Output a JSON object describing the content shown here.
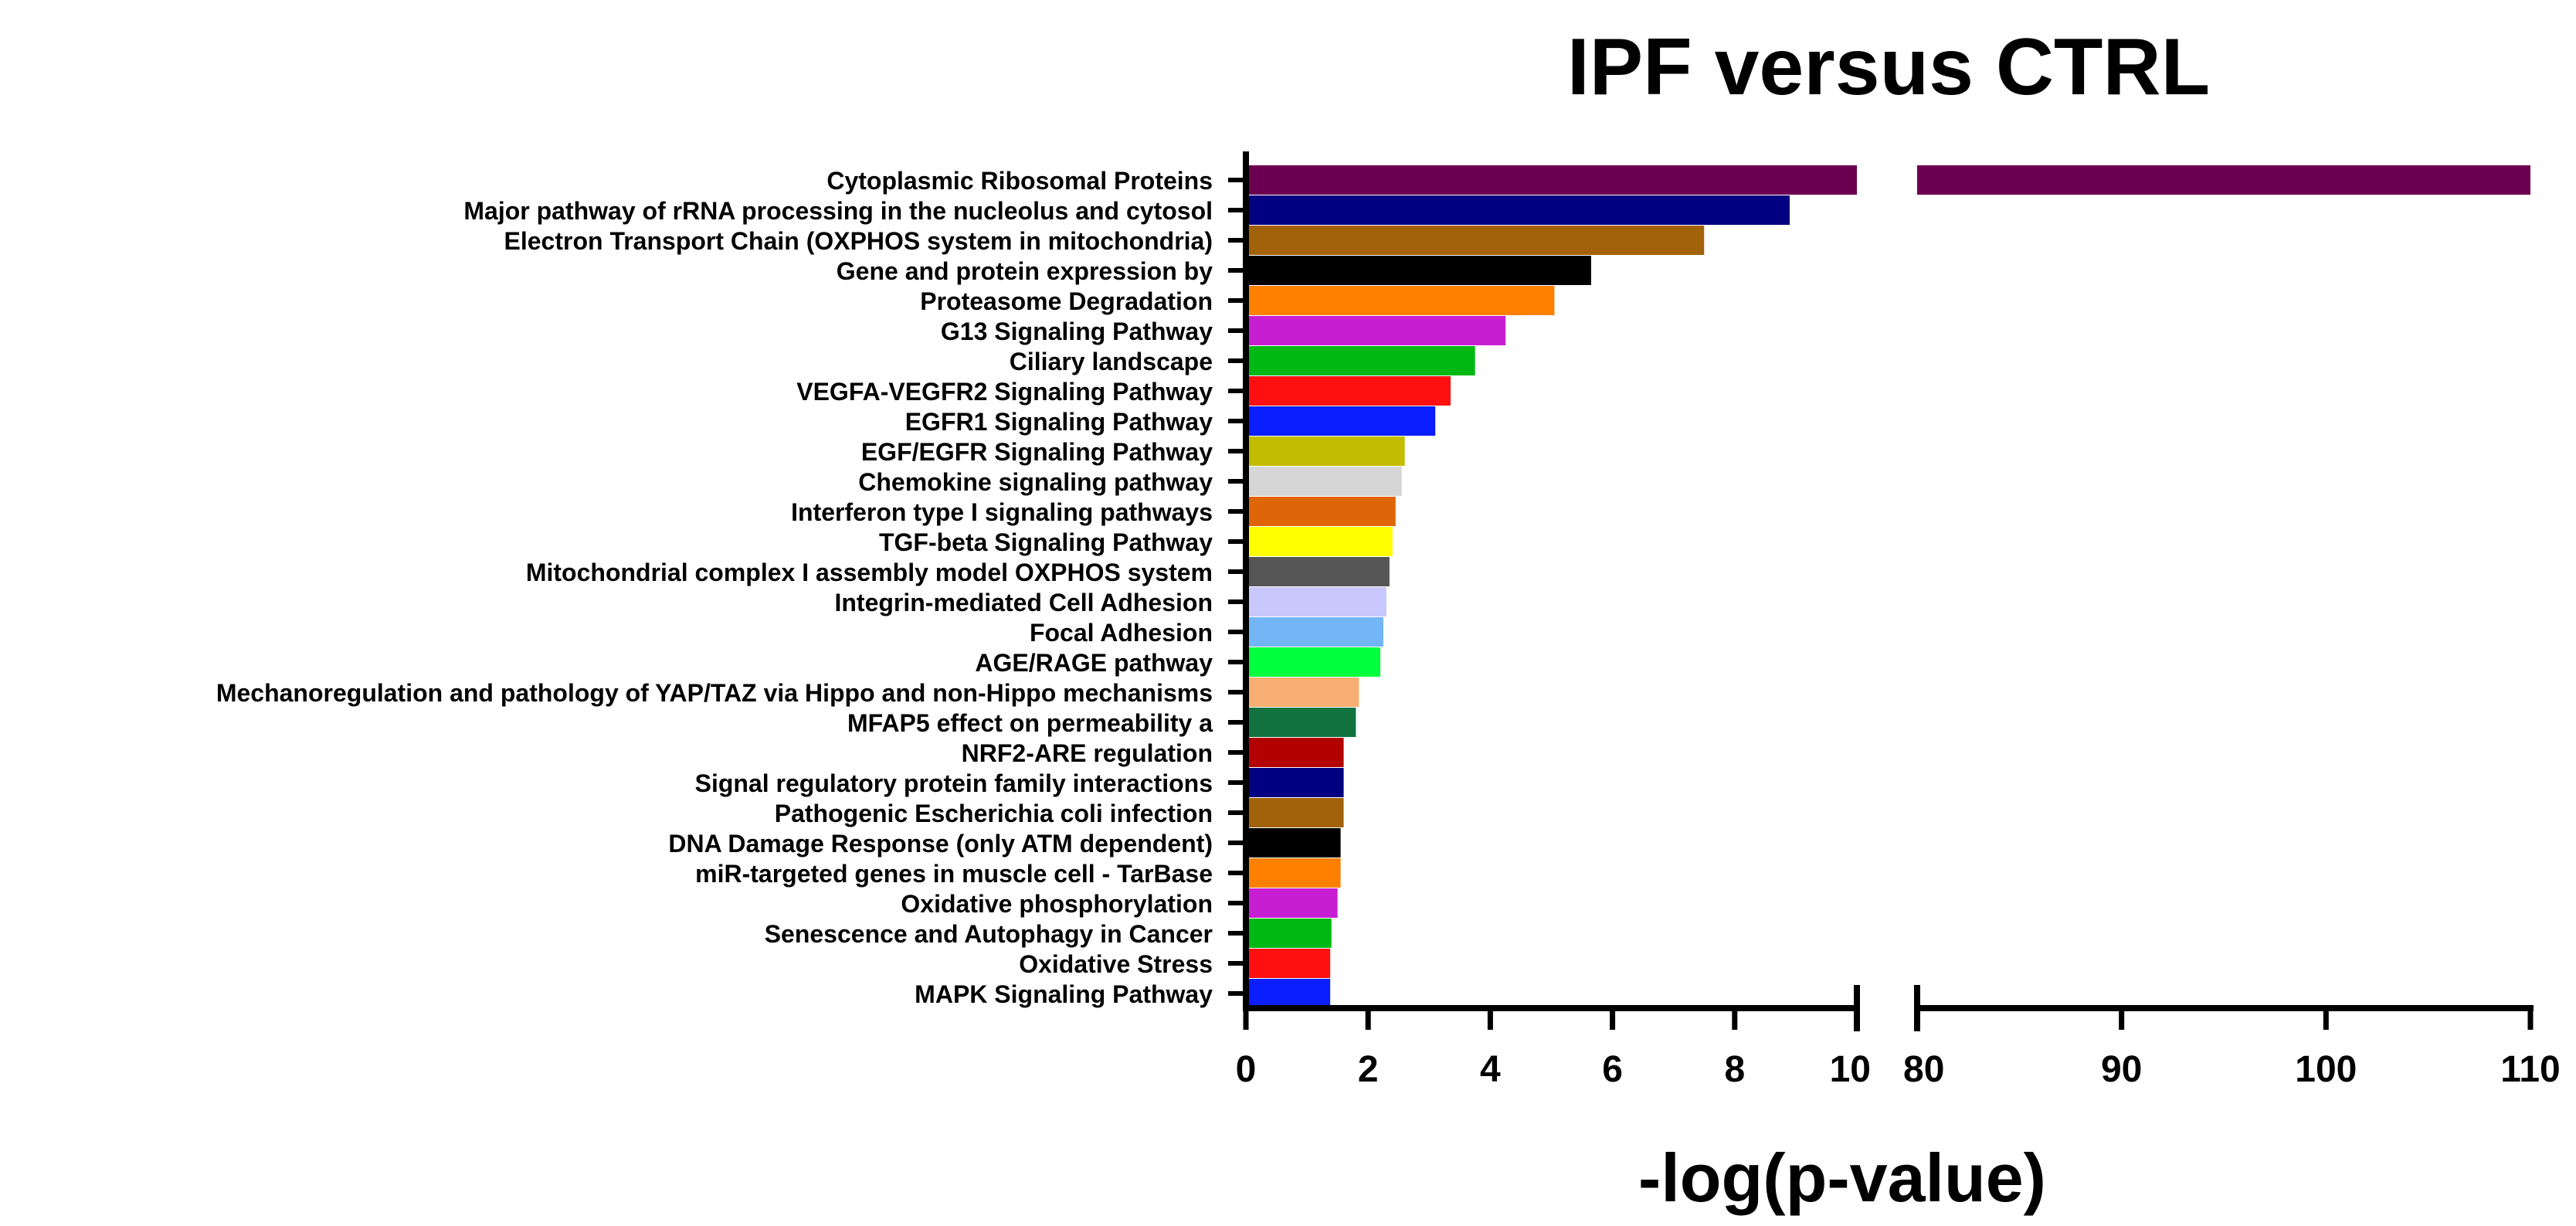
{
  "chart_data": {
    "type": "bar",
    "orientation": "horizontal",
    "title": "IPF versus CTRL",
    "xlabel": "-log(p-value)",
    "ylabel": "",
    "axis_break": true,
    "x_segments": [
      {
        "range": [
          0,
          10
        ],
        "ticks": [
          0,
          2,
          4,
          6,
          8,
          10
        ],
        "tick_labels": [
          "0",
          "2",
          "4",
          "6",
          "8",
          "10"
        ]
      },
      {
        "range": [
          80,
          110
        ],
        "ticks": [
          80,
          90,
          100,
          110
        ],
        "tick_labels": [
          "80",
          "90",
          "100",
          "110"
        ]
      }
    ],
    "grid": false,
    "legend": "none",
    "categories": [
      "Cytoplasmic Ribosomal Proteins",
      "Major pathway of rRNA processing in the nucleolus and cytosol",
      "Electron Transport Chain (OXPHOS system in mitochondria)",
      "Gene and protein expression by",
      "Proteasome Degradation",
      "G13 Signaling Pathway",
      "Ciliary landscape",
      "VEGFA-VEGFR2 Signaling Pathway",
      "EGFR1 Signaling Pathway",
      "EGF/EGFR Signaling Pathway",
      "Chemokine signaling pathway",
      "Interferon type I signaling pathways",
      "TGF-beta Signaling Pathway",
      "Mitochondrial complex I assembly model OXPHOS system",
      "Integrin-mediated Cell Adhesion",
      "Focal Adhesion",
      "AGE/RAGE pathway",
      "Mechanoregulation and pathology of YAP/TAZ via Hippo and non-Hippo mechanisms",
      "MFAP5 effect on permeability a",
      "NRF2-ARE regulation",
      "Signal regulatory protein family interactions",
      "Pathogenic Escherichia coli infection",
      "DNA Damage Response (only ATM dependent)",
      "miR-targeted genes in muscle cell - TarBase",
      "Oxidative phosphorylation",
      "Senescence and Autophagy in Cancer",
      "Oxidative Stress",
      "MAPK Signaling Pathway"
    ],
    "values": [
      110,
      8.9,
      7.5,
      5.65,
      5.05,
      4.25,
      3.75,
      3.35,
      3.1,
      2.6,
      2.55,
      2.45,
      2.4,
      2.35,
      2.3,
      2.25,
      2.2,
      1.85,
      1.8,
      1.6,
      1.6,
      1.6,
      1.55,
      1.55,
      1.5,
      1.4,
      1.38,
      1.38
    ],
    "colors": [
      "#6b0051",
      "#000080",
      "#a2620a",
      "#000000",
      "#ff8000",
      "#c71ed3",
      "#00b812",
      "#ff1010",
      "#0a1eff",
      "#c2bd00",
      "#d6d6d6",
      "#e06408",
      "#ffff00",
      "#555555",
      "#c8c8ff",
      "#73b6f6",
      "#00ff3c",
      "#f8ad72",
      "#127340",
      "#b30000",
      "#000080",
      "#a2620a",
      "#000000",
      "#ff8000",
      "#c71ed3",
      "#00b812",
      "#ff1010",
      "#0a1eff"
    ]
  }
}
